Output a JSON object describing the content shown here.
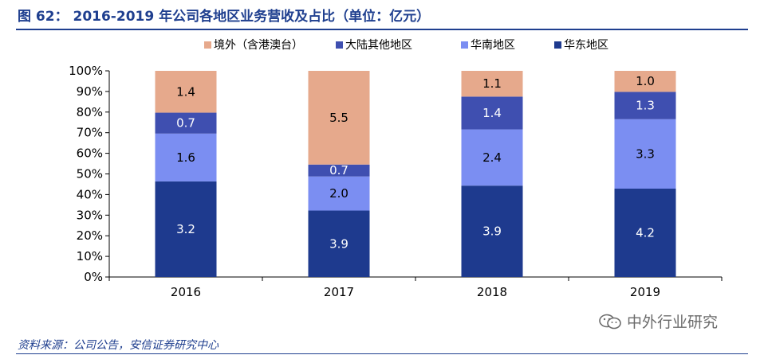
{
  "title": "图 62：  2016-2019 年公司各地区业务营收及占比（单位：亿元）",
  "source": "资料来源：公司公告，安信证券研究中心",
  "watermark": "中外行业研究",
  "chart_data": {
    "type": "bar",
    "stacked": true,
    "normalized_percent": true,
    "categories": [
      "2016",
      "2017",
      "2018",
      "2019"
    ],
    "series": [
      {
        "name": "华东地区",
        "color": "#1e3a8e",
        "values": [
          3.2,
          3.9,
          3.9,
          4.2
        ]
      },
      {
        "name": "华南地区",
        "color": "#7b8ef2",
        "values": [
          1.6,
          2.0,
          2.4,
          3.3
        ]
      },
      {
        "name": "大陆其他地区",
        "color": "#3f4fb0",
        "values": [
          0.7,
          0.7,
          1.4,
          1.3
        ]
      },
      {
        "name": "境外（含港澳台）",
        "color": "#e6a98c",
        "values": [
          1.4,
          5.5,
          1.1,
          1.0
        ]
      }
    ],
    "legend_order": [
      "境外（含港澳台）",
      "大陆其他地区",
      "华南地区",
      "华东地区"
    ],
    "legend_position": "top",
    "ylim": [
      0,
      100
    ],
    "yticks": [
      "0%",
      "10%",
      "20%",
      "30%",
      "40%",
      "50%",
      "60%",
      "70%",
      "80%",
      "90%",
      "100%"
    ],
    "grid": false
  }
}
